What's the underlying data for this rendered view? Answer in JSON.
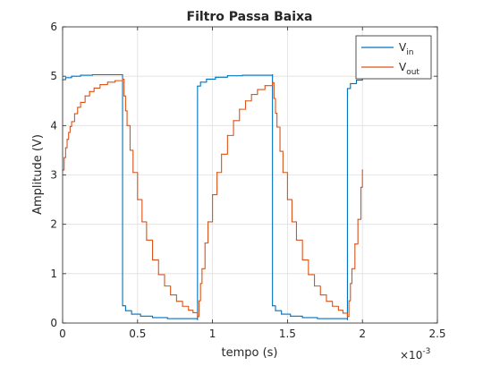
{
  "chart_data": {
    "type": "line",
    "title": "Filtro Passa Baixa",
    "xlabel": "tempo (s)",
    "ylabel": "Amplitude (V)",
    "x_exponent_label": "×10",
    "x_exponent_power": "-3",
    "xlim": [
      0,
      2.5
    ],
    "ylim": [
      0,
      6
    ],
    "x_unit_scale": 0.001,
    "xticks": [
      0,
      0.5,
      1,
      1.5,
      2,
      2.5
    ],
    "xtick_labels": [
      "0",
      "0.5",
      "1",
      "1.5",
      "2",
      "2.5"
    ],
    "yticks": [
      0,
      1,
      2,
      3,
      4,
      5,
      6
    ],
    "ytick_labels": [
      "0",
      "1",
      "2",
      "3",
      "4",
      "5",
      "6"
    ],
    "grid": true,
    "legend_position": "top-right",
    "series": [
      {
        "name": "V",
        "subscript": "in",
        "color": "#0072BD",
        "style": "stairs",
        "points": [
          [
            0,
            4.93
          ],
          [
            0.02,
            4.97
          ],
          [
            0.06,
            5.0
          ],
          [
            0.12,
            5.02
          ],
          [
            0.2,
            5.03
          ],
          [
            0.4,
            5.03
          ],
          [
            0.4,
            0.35
          ],
          [
            0.42,
            0.25
          ],
          [
            0.46,
            0.18
          ],
          [
            0.52,
            0.14
          ],
          [
            0.6,
            0.11
          ],
          [
            0.7,
            0.09
          ],
          [
            0.9,
            0.07
          ],
          [
            0.9,
            4.8
          ],
          [
            0.92,
            4.88
          ],
          [
            0.96,
            4.94
          ],
          [
            1.02,
            4.98
          ],
          [
            1.1,
            5.01
          ],
          [
            1.2,
            5.02
          ],
          [
            1.4,
            5.03
          ],
          [
            1.4,
            0.35
          ],
          [
            1.42,
            0.25
          ],
          [
            1.46,
            0.18
          ],
          [
            1.52,
            0.14
          ],
          [
            1.6,
            0.11
          ],
          [
            1.7,
            0.09
          ],
          [
            1.9,
            0.07
          ],
          [
            1.9,
            4.75
          ],
          [
            1.92,
            4.85
          ],
          [
            1.96,
            4.92
          ],
          [
            2.0,
            4.95
          ]
        ]
      },
      {
        "name": "V",
        "subscript": "out",
        "color": "#D95319",
        "style": "stairs",
        "points": [
          [
            0,
            3.1
          ],
          [
            0.01,
            3.35
          ],
          [
            0.02,
            3.55
          ],
          [
            0.03,
            3.72
          ],
          [
            0.04,
            3.86
          ],
          [
            0.05,
            3.98
          ],
          [
            0.06,
            4.08
          ],
          [
            0.08,
            4.24
          ],
          [
            0.1,
            4.37
          ],
          [
            0.12,
            4.47
          ],
          [
            0.15,
            4.6
          ],
          [
            0.18,
            4.69
          ],
          [
            0.21,
            4.76
          ],
          [
            0.25,
            4.83
          ],
          [
            0.3,
            4.88
          ],
          [
            0.35,
            4.91
          ],
          [
            0.4,
            4.94
          ],
          [
            0.41,
            4.6
          ],
          [
            0.42,
            4.3
          ],
          [
            0.43,
            4.0
          ],
          [
            0.45,
            3.5
          ],
          [
            0.47,
            3.05
          ],
          [
            0.5,
            2.5
          ],
          [
            0.53,
            2.05
          ],
          [
            0.56,
            1.68
          ],
          [
            0.6,
            1.28
          ],
          [
            0.64,
            0.98
          ],
          [
            0.68,
            0.75
          ],
          [
            0.72,
            0.57
          ],
          [
            0.76,
            0.44
          ],
          [
            0.8,
            0.34
          ],
          [
            0.84,
            0.26
          ],
          [
            0.87,
            0.21
          ],
          [
            0.9,
            0.13
          ],
          [
            0.91,
            0.45
          ],
          [
            0.92,
            0.8
          ],
          [
            0.93,
            1.1
          ],
          [
            0.95,
            1.62
          ],
          [
            0.97,
            2.05
          ],
          [
            1.0,
            2.6
          ],
          [
            1.03,
            3.05
          ],
          [
            1.06,
            3.42
          ],
          [
            1.1,
            3.8
          ],
          [
            1.14,
            4.1
          ],
          [
            1.18,
            4.33
          ],
          [
            1.22,
            4.5
          ],
          [
            1.26,
            4.63
          ],
          [
            1.3,
            4.73
          ],
          [
            1.35,
            4.81
          ],
          [
            1.4,
            4.87
          ],
          [
            1.41,
            4.55
          ],
          [
            1.42,
            4.25
          ],
          [
            1.43,
            3.97
          ],
          [
            1.45,
            3.48
          ],
          [
            1.47,
            3.05
          ],
          [
            1.5,
            2.5
          ],
          [
            1.53,
            2.05
          ],
          [
            1.56,
            1.68
          ],
          [
            1.6,
            1.28
          ],
          [
            1.64,
            0.98
          ],
          [
            1.68,
            0.75
          ],
          [
            1.72,
            0.57
          ],
          [
            1.76,
            0.44
          ],
          [
            1.8,
            0.34
          ],
          [
            1.84,
            0.26
          ],
          [
            1.87,
            0.2
          ],
          [
            1.9,
            0.13
          ],
          [
            1.91,
            0.45
          ],
          [
            1.92,
            0.8
          ],
          [
            1.93,
            1.1
          ],
          [
            1.95,
            1.6
          ],
          [
            1.97,
            2.1
          ],
          [
            1.99,
            2.75
          ],
          [
            2.0,
            3.1
          ]
        ]
      }
    ]
  }
}
